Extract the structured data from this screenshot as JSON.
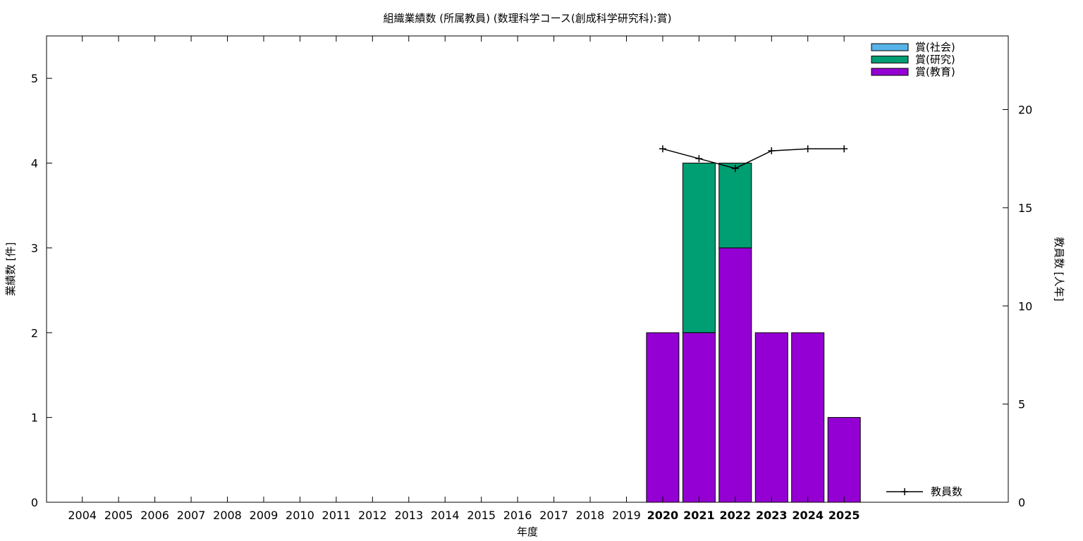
{
  "chart_data": {
    "type": "bar",
    "stacked": true,
    "title": "組織業績数 (所属教員) (数理科学コース(創成科学研究科):賞)",
    "xlabel": "年度",
    "ylabel": "業績数 [件]",
    "y2label": "教員数 [人年]",
    "categories": [
      "2004",
      "2005",
      "2006",
      "2007",
      "2008",
      "2009",
      "2010",
      "2011",
      "2012",
      "2013",
      "2014",
      "2015",
      "2016",
      "2017",
      "2018",
      "2019",
      "2020",
      "2021",
      "2022",
      "2023",
      "2024",
      "2025"
    ],
    "bold_categories": [
      "2020",
      "2021",
      "2022",
      "2023",
      "2024",
      "2025"
    ],
    "ylim": [
      0,
      5.5
    ],
    "yticks": [
      "0",
      "1",
      "2",
      "3",
      "4",
      "5"
    ],
    "y2lim": [
      0,
      23.75
    ],
    "y2ticks": [
      "0",
      "5",
      "10",
      "15",
      "20"
    ],
    "grid": false,
    "legend_position": "top-right",
    "series": [
      {
        "name": "賞(教育)",
        "color": "#9400d3",
        "values": [
          0,
          0,
          0,
          0,
          0,
          0,
          0,
          0,
          0,
          0,
          0,
          0,
          0,
          0,
          0,
          0,
          2,
          2,
          3,
          2,
          2,
          1
        ]
      },
      {
        "name": "賞(研究)",
        "color": "#009e73",
        "values": [
          0,
          0,
          0,
          0,
          0,
          0,
          0,
          0,
          0,
          0,
          0,
          0,
          0,
          0,
          0,
          0,
          0,
          2,
          1,
          0,
          0,
          0
        ]
      },
      {
        "name": "賞(社会)",
        "color": "#56b4e9",
        "values": [
          0,
          0,
          0,
          0,
          0,
          0,
          0,
          0,
          0,
          0,
          0,
          0,
          0,
          0,
          0,
          0,
          0,
          0,
          0,
          0,
          0,
          0
        ]
      }
    ],
    "legend_order": [
      "賞(社会)",
      "賞(研究)",
      "賞(教育)"
    ],
    "line_series": {
      "name": "教員数",
      "color": "#000000",
      "axis": "y2",
      "points": [
        {
          "x": "2020",
          "y": 18.0
        },
        {
          "x": "2021",
          "y": 17.5
        },
        {
          "x": "2022",
          "y": 17.0
        },
        {
          "x": "2023",
          "y": 17.9
        },
        {
          "x": "2024",
          "y": 18.0
        },
        {
          "x": "2025",
          "y": 18.0
        }
      ]
    }
  }
}
